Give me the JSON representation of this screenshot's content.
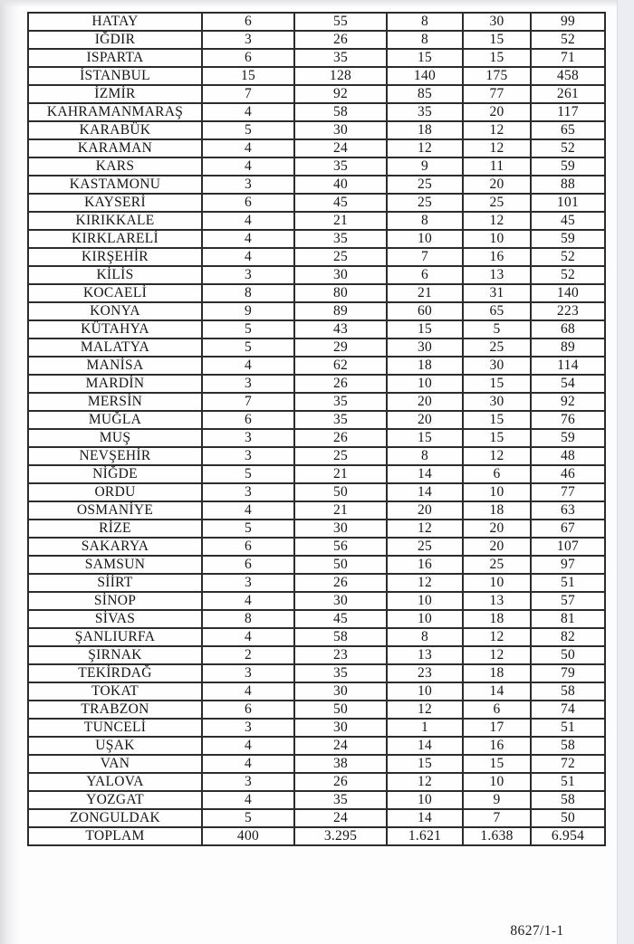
{
  "page": {
    "footer_ref": "8627/1-1"
  },
  "colors": {
    "table_border": "#2c2c2c",
    "page_background": "#fdfdfd",
    "scan_edge_band": "#ecedf3"
  },
  "table": {
    "rows": [
      {
        "province": "HATAY",
        "values": [
          "6",
          "55",
          "8",
          "30",
          "99"
        ]
      },
      {
        "province": "IĞDIR",
        "values": [
          "3",
          "26",
          "8",
          "15",
          "52"
        ]
      },
      {
        "province": "ISPARTA",
        "values": [
          "6",
          "35",
          "15",
          "15",
          "71"
        ]
      },
      {
        "province": "İSTANBUL",
        "values": [
          "15",
          "128",
          "140",
          "175",
          "458"
        ]
      },
      {
        "province": "İZMİR",
        "values": [
          "7",
          "92",
          "85",
          "77",
          "261"
        ]
      },
      {
        "province": "KAHRAMANMARAŞ",
        "values": [
          "4",
          "58",
          "35",
          "20",
          "117"
        ]
      },
      {
        "province": "KARABÜK",
        "values": [
          "5",
          "30",
          "18",
          "12",
          "65"
        ]
      },
      {
        "province": "KARAMAN",
        "values": [
          "4",
          "24",
          "12",
          "12",
          "52"
        ]
      },
      {
        "province": "KARS",
        "values": [
          "4",
          "35",
          "9",
          "11",
          "59"
        ]
      },
      {
        "province": "KASTAMONU",
        "values": [
          "3",
          "40",
          "25",
          "20",
          "88"
        ]
      },
      {
        "province": "KAYSERİ",
        "values": [
          "6",
          "45",
          "25",
          "25",
          "101"
        ]
      },
      {
        "province": "KIRIKKALE",
        "values": [
          "4",
          "21",
          "8",
          "12",
          "45"
        ]
      },
      {
        "province": "KIRKLARELİ",
        "values": [
          "4",
          "35",
          "10",
          "10",
          "59"
        ]
      },
      {
        "province": "KIRŞEHİR",
        "values": [
          "4",
          "25",
          "7",
          "16",
          "52"
        ]
      },
      {
        "province": "KİLİS",
        "values": [
          "3",
          "30",
          "6",
          "13",
          "52"
        ]
      },
      {
        "province": "KOCAELİ",
        "values": [
          "8",
          "80",
          "21",
          "31",
          "140"
        ]
      },
      {
        "province": "KONYA",
        "values": [
          "9",
          "89",
          "60",
          "65",
          "223"
        ]
      },
      {
        "province": "KÜTAHYA",
        "values": [
          "5",
          "43",
          "15",
          "5",
          "68"
        ]
      },
      {
        "province": "MALATYA",
        "values": [
          "5",
          "29",
          "30",
          "25",
          "89"
        ]
      },
      {
        "province": "MANİSA",
        "values": [
          "4",
          "62",
          "18",
          "30",
          "114"
        ]
      },
      {
        "province": "MARDİN",
        "values": [
          "3",
          "26",
          "10",
          "15",
          "54"
        ]
      },
      {
        "province": "MERSİN",
        "values": [
          "7",
          "35",
          "20",
          "30",
          "92"
        ]
      },
      {
        "province": "MUĞLA",
        "values": [
          "6",
          "35",
          "20",
          "15",
          "76"
        ]
      },
      {
        "province": "MUŞ",
        "values": [
          "3",
          "26",
          "15",
          "15",
          "59"
        ]
      },
      {
        "province": "NEVŞEHİR",
        "values": [
          "3",
          "25",
          "8",
          "12",
          "48"
        ]
      },
      {
        "province": "NİĞDE",
        "values": [
          "5",
          "21",
          "14",
          "6",
          "46"
        ]
      },
      {
        "province": "ORDU",
        "values": [
          "3",
          "50",
          "14",
          "10",
          "77"
        ]
      },
      {
        "province": "OSMANİYE",
        "values": [
          "4",
          "21",
          "20",
          "18",
          "63"
        ]
      },
      {
        "province": "RİZE",
        "values": [
          "5",
          "30",
          "12",
          "20",
          "67"
        ]
      },
      {
        "province": "SAKARYA",
        "values": [
          "6",
          "56",
          "25",
          "20",
          "107"
        ]
      },
      {
        "province": "SAMSUN",
        "values": [
          "6",
          "50",
          "16",
          "25",
          "97"
        ]
      },
      {
        "province": "SİİRT",
        "values": [
          "3",
          "26",
          "12",
          "10",
          "51"
        ]
      },
      {
        "province": "SİNOP",
        "values": [
          "4",
          "30",
          "10",
          "13",
          "57"
        ]
      },
      {
        "province": "SİVAS",
        "values": [
          "8",
          "45",
          "10",
          "18",
          "81"
        ]
      },
      {
        "province": "ŞANLIURFA",
        "values": [
          "4",
          "58",
          "8",
          "12",
          "82"
        ]
      },
      {
        "province": "ŞIRNAK",
        "values": [
          "2",
          "23",
          "13",
          "12",
          "50"
        ]
      },
      {
        "province": "TEKİRDAĞ",
        "values": [
          "3",
          "35",
          "23",
          "18",
          "79"
        ]
      },
      {
        "province": "TOKAT",
        "values": [
          "4",
          "30",
          "10",
          "14",
          "58"
        ]
      },
      {
        "province": "TRABZON",
        "values": [
          "6",
          "50",
          "12",
          "6",
          "74"
        ]
      },
      {
        "province": "TUNCELİ",
        "values": [
          "3",
          "30",
          "1",
          "17",
          "51"
        ]
      },
      {
        "province": "UŞAK",
        "values": [
          "4",
          "24",
          "14",
          "16",
          "58"
        ]
      },
      {
        "province": "VAN",
        "values": [
          "4",
          "38",
          "15",
          "15",
          "72"
        ]
      },
      {
        "province": "YALOVA",
        "values": [
          "3",
          "26",
          "12",
          "10",
          "51"
        ]
      },
      {
        "province": "YOZGAT",
        "values": [
          "4",
          "35",
          "10",
          "9",
          "58"
        ]
      },
      {
        "province": "ZONGULDAK",
        "values": [
          "5",
          "24",
          "14",
          "7",
          "50"
        ]
      },
      {
        "province": "TOPLAM",
        "values": [
          "400",
          "3.295",
          "1.621",
          "1.638",
          "6.954"
        ]
      }
    ]
  }
}
